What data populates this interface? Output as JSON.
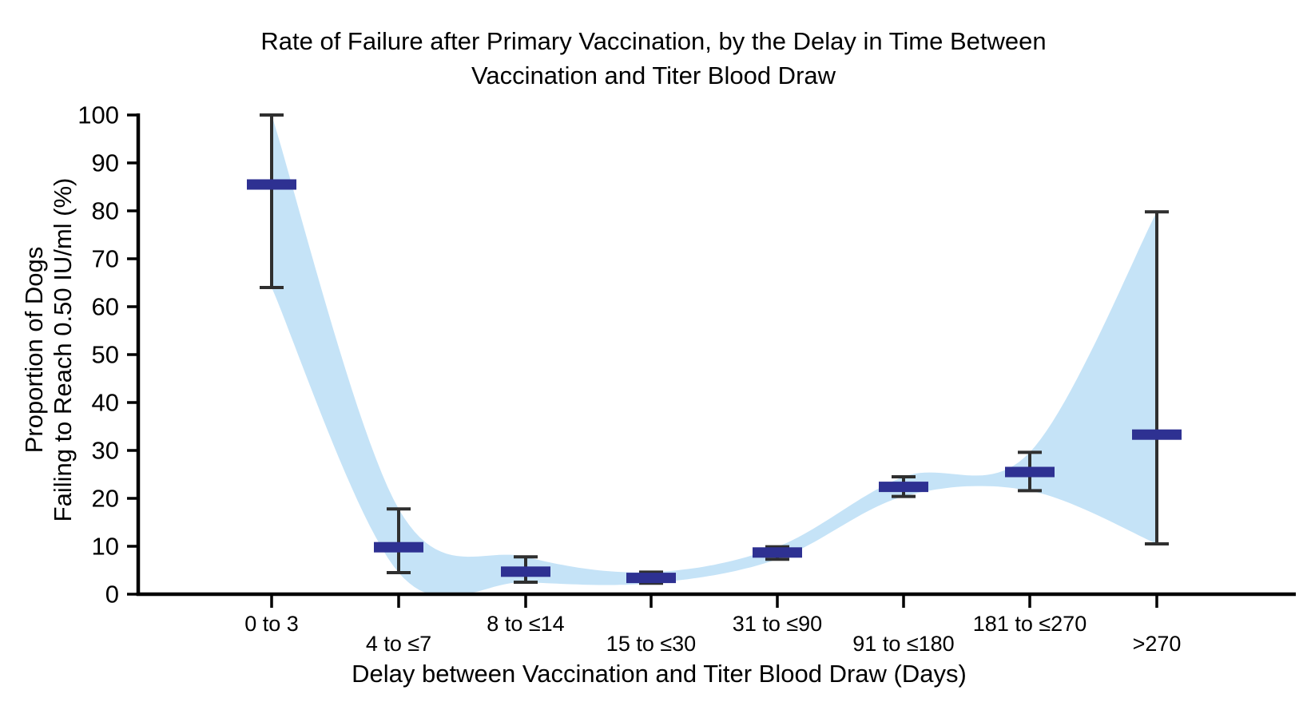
{
  "title": {
    "line1": "Rate of Failure after Primary Vaccination, by the Delay in Time Between",
    "line2": "Vaccination and Titer Blood Draw"
  },
  "axes": {
    "y_label_line1": "Proportion of Dogs",
    "y_label_line2": "Failing to Reach 0.50 IU/ml (%)",
    "x_label": "Delay between Vaccination and Titer Blood Draw (Days)"
  },
  "chart_data": {
    "type": "scatter",
    "style": "point-estimates-with-error-bars-and-confidence-band",
    "title": "Rate of Failure after Primary Vaccination, by the Delay in Time Between Vaccination and Titer Blood Draw",
    "xlabel": "Delay between Vaccination and Titer Blood Draw (Days)",
    "ylabel": "Proportion of Dogs Failing to Reach 0.50 IU/ml (%)",
    "categories": [
      "0 to 3",
      "4 to ≤7",
      "8 to ≤14",
      "15 to ≤30",
      "31 to ≤90",
      "91 to ≤180",
      "181 to ≤270",
      ">270"
    ],
    "series": [
      {
        "name": "Failure rate point estimate (%)",
        "values": [
          85.5,
          9.8,
          4.7,
          3.4,
          8.7,
          22.4,
          25.5,
          33.3
        ]
      },
      {
        "name": "CI lower bound (%)",
        "values": [
          64,
          4.5,
          2.5,
          2.3,
          7.3,
          20.4,
          21.6,
          10.5
        ]
      },
      {
        "name": "CI upper bound (%)",
        "values": [
          100,
          17.8,
          7.8,
          4.6,
          9.9,
          24.5,
          29.6,
          79.8
        ]
      }
    ],
    "ylim": [
      0,
      100
    ],
    "yticks": [
      0,
      10,
      20,
      30,
      40,
      50,
      60,
      70,
      80,
      90,
      100
    ],
    "grid": false,
    "legend": "none",
    "colors": {
      "point_marker": "#2e3192",
      "confidence_band": "#c5e3f7",
      "error_bar": "#2f2f2f",
      "axis": "#000000"
    }
  }
}
